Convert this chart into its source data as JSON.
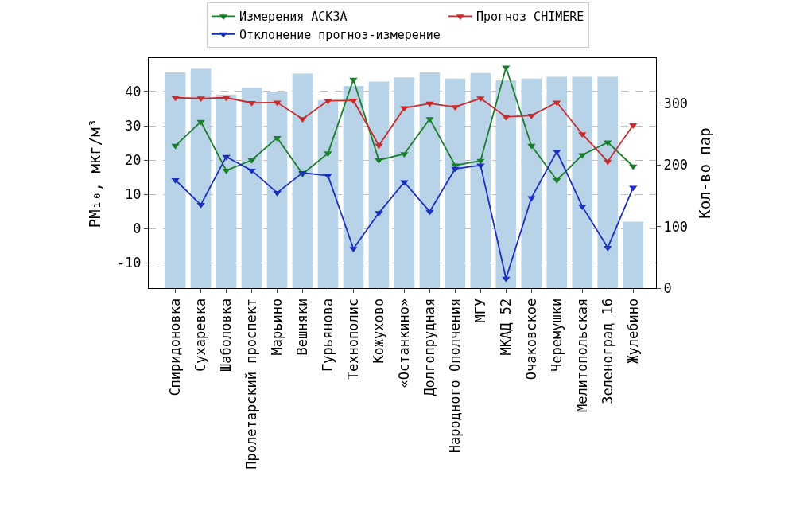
{
  "chart_data": {
    "type": "line",
    "ylabel": "PM₁₀, мкг/м³",
    "y2label": "Кол-во пар",
    "categories": [
      "Спиридоновка",
      "Сухаревка",
      "Шаболовка",
      "Пролетарский проспект",
      "Марьино",
      "Вешняки",
      "Гурьянова",
      "Технополис",
      "Кожухово",
      "«Останкино»",
      "Долгопрудная",
      "Народного Ополчения",
      "МГУ",
      "МКАД 52",
      "Очаковское",
      "Черемушки",
      "Мелитопольская",
      "Зеленоград 16",
      "Жулебино"
    ],
    "series": [
      {
        "type": "bar",
        "axis": "y2",
        "color": "#b8d3e8",
        "values": [
          350,
          356,
          314,
          325,
          319,
          348,
          305,
          328,
          335,
          342,
          350,
          340,
          349,
          337,
          340,
          343,
          343,
          343,
          108
        ]
      },
      {
        "name": "Измерения АСКЗА",
        "color": "#1a7f2a",
        "values": [
          24.2,
          31.2,
          17,
          20,
          26.5,
          16,
          22,
          43.5,
          20,
          21.8,
          32,
          18.5,
          19.8,
          47,
          24.2,
          14.2,
          21.5,
          25.2,
          18.2
        ]
      },
      {
        "name": "Прогноз CHIMERE",
        "color": "#cc2a2a",
        "values": [
          38.2,
          38,
          38.2,
          36.7,
          36.8,
          32,
          37.3,
          37.4,
          24.3,
          35.2,
          36.5,
          35.5,
          38,
          32.6,
          33,
          36.8,
          27.6,
          19.6,
          30.2
        ]
      },
      {
        "name": "Отклонение прогноз-измерение",
        "color": "#1a2fbf",
        "values": [
          14.2,
          7,
          21,
          17,
          10.5,
          16.3,
          15.5,
          -5.8,
          4.6,
          13.6,
          5,
          17.5,
          18.5,
          -14.5,
          9,
          22.5,
          6.5,
          -5.5,
          12
        ]
      }
    ],
    "ylim": [
      -17.3,
      49.7
    ],
    "yticks": [
      -10,
      0,
      10,
      20,
      30,
      40
    ],
    "y2lim": [
      0,
      373
    ],
    "y2ticks": [
      0,
      100,
      200,
      300
    ],
    "grid": "y",
    "legend": "top",
    "marker": "triangle",
    "line_style": "solid"
  }
}
